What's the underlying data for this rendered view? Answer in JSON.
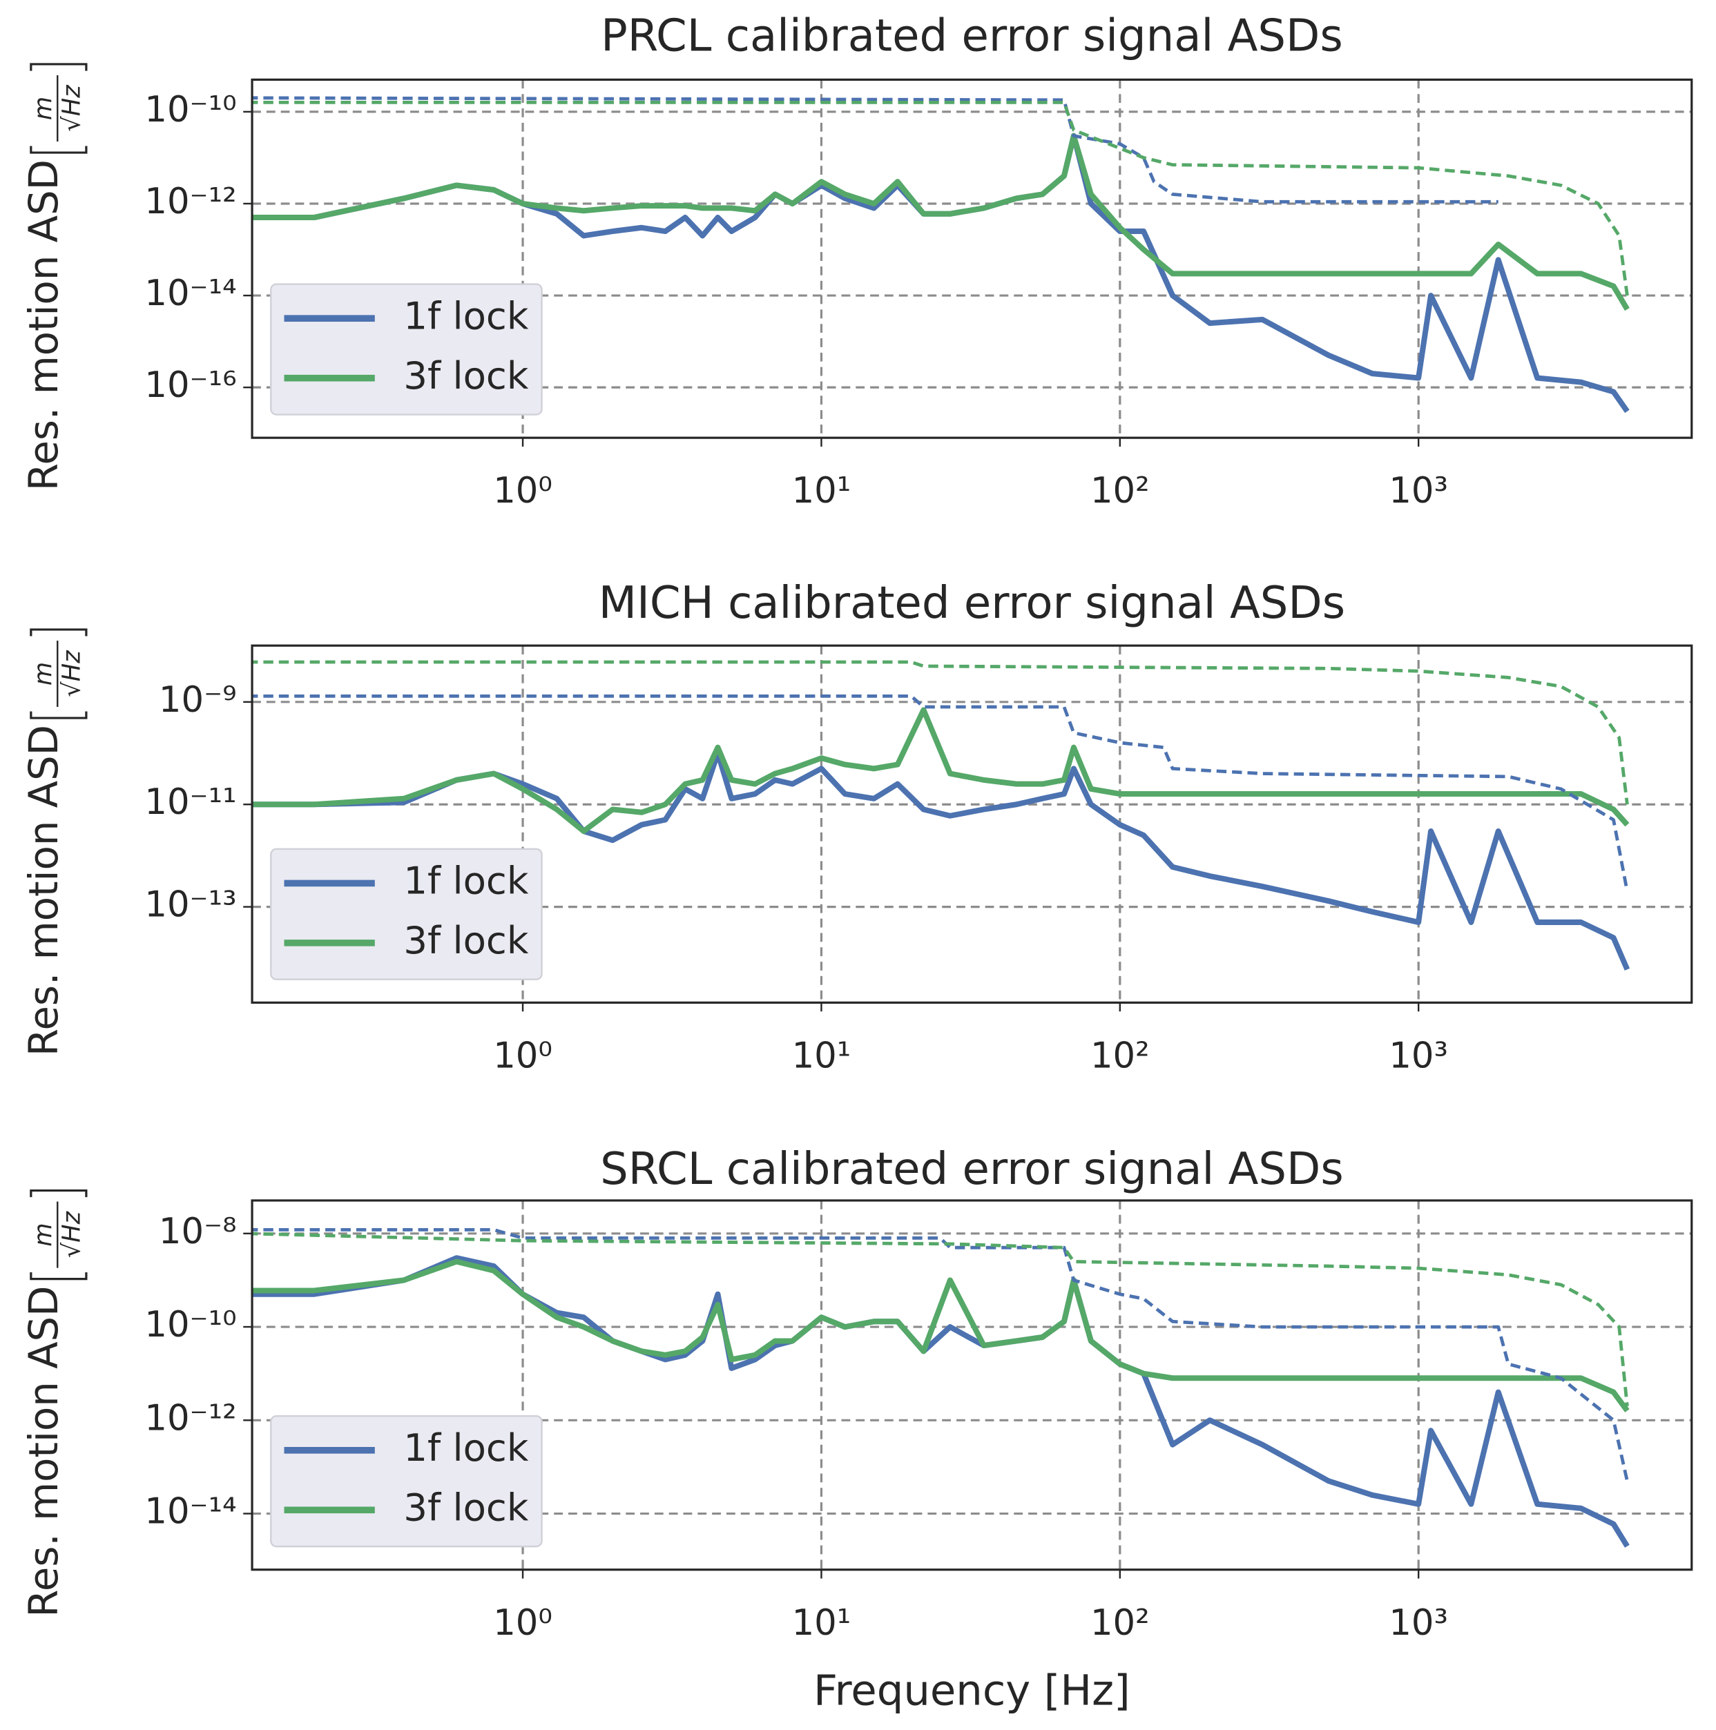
{
  "chart_data": [
    {
      "type": "line",
      "title": "PRCL calibrated error signal ASDs",
      "ylabel": "Res. motion ASD",
      "yunit": {
        "numerator": "m",
        "denominator": "√Hz"
      },
      "xlog": true,
      "ylog": true,
      "grid": true,
      "legend": "lower left",
      "xlim": [
        0.124,
        8220
      ],
      "ylim": [
        8e-18,
        5e-10
      ],
      "xticks": [
        {
          "value": 1,
          "label": "10⁰"
        },
        {
          "value": 10,
          "label": "10¹"
        },
        {
          "value": 100,
          "label": "10²"
        },
        {
          "value": 1000,
          "label": "10³"
        }
      ],
      "yticks": [
        {
          "value": 1e-16,
          "label": "10⁻¹⁶"
        },
        {
          "value": 1e-14,
          "label": "10⁻¹⁴"
        },
        {
          "value": 1e-12,
          "label": "10⁻¹²"
        },
        {
          "value": 1e-10,
          "label": "10⁻¹⁰"
        }
      ],
      "series": [
        {
          "name": "1f lock",
          "color": "#4c72b0",
          "style": "solid",
          "x": [
            0.12,
            0.2,
            0.4,
            0.6,
            0.8,
            1,
            1.3,
            1.6,
            2,
            2.5,
            3,
            3.5,
            4,
            4.5,
            5,
            6,
            7,
            8,
            10,
            12,
            15,
            18,
            22,
            27,
            35,
            45,
            55,
            65,
            70,
            80,
            100,
            120,
            150,
            200,
            300,
            500,
            700,
            1000,
            1100,
            1500,
            1850,
            2500,
            3500,
            4500,
            5000
          ],
          "values": [
            5e-13,
            5e-13,
            1.3e-12,
            2.5e-12,
            2e-12,
            1e-12,
            6e-13,
            2e-13,
            2.5e-13,
            3e-13,
            2.5e-13,
            5e-13,
            2e-13,
            5e-13,
            2.5e-13,
            5e-13,
            1.6e-12,
            1e-12,
            2.5e-12,
            1.3e-12,
            8e-13,
            2.5e-12,
            6e-13,
            6e-13,
            8e-13,
            1.3e-12,
            1.6e-12,
            4e-12,
            3e-11,
            1e-12,
            2.5e-13,
            2.5e-13,
            1e-14,
            2.5e-15,
            3e-15,
            5e-16,
            2e-16,
            1.6e-16,
            1e-14,
            1.6e-16,
            6e-14,
            1.6e-16,
            1.3e-16,
            8e-17,
            3e-17
          ]
        },
        {
          "name": "3f lock",
          "color": "#55a868",
          "style": "solid",
          "x": [
            0.12,
            0.2,
            0.4,
            0.6,
            0.8,
            1,
            1.3,
            1.6,
            2,
            2.5,
            3,
            3.5,
            4,
            4.5,
            5,
            6,
            7,
            8,
            10,
            12,
            15,
            18,
            22,
            27,
            35,
            45,
            55,
            65,
            70,
            80,
            100,
            120,
            150,
            200,
            300,
            500,
            700,
            1000,
            1100,
            1500,
            1850,
            2500,
            3500,
            4500,
            5000
          ],
          "values": [
            5e-13,
            5e-13,
            1.3e-12,
            2.5e-12,
            2e-12,
            1e-12,
            8e-13,
            7e-13,
            8e-13,
            9e-13,
            9e-13,
            9e-13,
            8e-13,
            8e-13,
            8e-13,
            7e-13,
            1.6e-12,
            1e-12,
            3e-12,
            1.6e-12,
            1e-12,
            3e-12,
            6e-13,
            6e-13,
            8e-13,
            1.3e-12,
            1.6e-12,
            4e-12,
            3e-11,
            1.6e-12,
            3e-13,
            1e-13,
            3e-14,
            3e-14,
            3e-14,
            3e-14,
            3e-14,
            3e-14,
            3e-14,
            3e-14,
            1.3e-13,
            3e-14,
            3e-14,
            1.6e-14,
            5e-15
          ]
        },
        {
          "color": "#4c72b0",
          "style": "dashed",
          "x": [
            0.12,
            65,
            70,
            100,
            120,
            130,
            150,
            300,
            1000,
            1850
          ],
          "values": [
            2e-10,
            1.8e-10,
            3e-11,
            2e-11,
            1e-11,
            3e-12,
            1.6e-12,
            1.1e-12,
            1.1e-12,
            1.1e-12
          ]
        },
        {
          "color": "#55a868",
          "style": "dashed",
          "x": [
            0.12,
            65,
            70,
            100,
            120,
            150,
            1000,
            2000,
            3000,
            4000,
            4700,
            5000
          ],
          "values": [
            1.6e-10,
            1.6e-10,
            4e-11,
            1.6e-11,
            1e-11,
            7e-12,
            6e-12,
            4e-12,
            2.5e-12,
            1e-12,
            2e-13,
            1e-14
          ]
        }
      ]
    },
    {
      "type": "line",
      "title": "MICH calibrated error signal ASDs",
      "ylabel": "Res. motion ASD",
      "yunit": {
        "numerator": "m",
        "denominator": "√Hz"
      },
      "xlog": true,
      "ylog": true,
      "grid": true,
      "legend": "lower left",
      "xlim": [
        0.124,
        8220
      ],
      "ylim": [
        1.35e-15,
        1.26e-08
      ],
      "xticks": [
        {
          "value": 1,
          "label": "10⁰"
        },
        {
          "value": 10,
          "label": "10¹"
        },
        {
          "value": 100,
          "label": "10²"
        },
        {
          "value": 1000,
          "label": "10³"
        }
      ],
      "yticks": [
        {
          "value": 1e-13,
          "label": "10⁻¹³"
        },
        {
          "value": 1e-11,
          "label": "10⁻¹¹"
        },
        {
          "value": 1e-09,
          "label": "10⁻⁹"
        }
      ],
      "series": [
        {
          "name": "1f lock",
          "color": "#4c72b0",
          "style": "solid",
          "x": [
            0.12,
            0.2,
            0.4,
            0.6,
            0.8,
            1,
            1.3,
            1.6,
            2,
            2.5,
            3,
            3.5,
            4,
            4.5,
            5,
            6,
            7,
            8,
            10,
            12,
            15,
            18,
            22,
            27,
            35,
            45,
            55,
            65,
            70,
            80,
            100,
            120,
            150,
            200,
            300,
            500,
            700,
            1000,
            1100,
            1500,
            1850,
            2500,
            3500,
            4500,
            5000
          ],
          "values": [
            1e-11,
            1e-11,
            1.1e-11,
            3e-11,
            4e-11,
            2.5e-11,
            1.3e-11,
            3e-12,
            2e-12,
            4e-12,
            5e-12,
            2e-11,
            1.3e-11,
            1e-10,
            1.3e-11,
            1.6e-11,
            3e-11,
            2.5e-11,
            5e-11,
            1.6e-11,
            1.3e-11,
            2.5e-11,
            8e-12,
            6e-12,
            8e-12,
            1e-11,
            1.3e-11,
            1.6e-11,
            5e-11,
            1e-11,
            4e-12,
            2.5e-12,
            6e-13,
            4e-13,
            2.5e-13,
            1.3e-13,
            8e-14,
            5e-14,
            3e-12,
            5e-14,
            3e-12,
            5e-14,
            5e-14,
            2.5e-14,
            6e-15
          ]
        },
        {
          "name": "3f lock",
          "color": "#55a868",
          "style": "solid",
          "x": [
            0.12,
            0.2,
            0.4,
            0.6,
            0.8,
            1,
            1.3,
            1.6,
            2,
            2.5,
            3,
            3.5,
            4,
            4.5,
            5,
            6,
            7,
            8,
            10,
            12,
            15,
            18,
            22,
            27,
            35,
            45,
            55,
            65,
            70,
            80,
            100,
            120,
            150,
            200,
            300,
            500,
            700,
            1000,
            1100,
            1500,
            1850,
            2500,
            3500,
            4500,
            5000
          ],
          "values": [
            1e-11,
            1e-11,
            1.3e-11,
            3e-11,
            4e-11,
            2e-11,
            8e-12,
            3e-12,
            8e-12,
            7e-12,
            1e-11,
            2.5e-11,
            3e-11,
            1.3e-10,
            3e-11,
            2.5e-11,
            4e-11,
            5e-11,
            8e-11,
            6e-11,
            5e-11,
            6e-11,
            7e-10,
            4e-11,
            3e-11,
            2.5e-11,
            2.5e-11,
            3e-11,
            1.3e-10,
            2e-11,
            1.6e-11,
            1.6e-11,
            1.6e-11,
            1.6e-11,
            1.6e-11,
            1.6e-11,
            1.6e-11,
            1.6e-11,
            1.6e-11,
            1.6e-11,
            1.6e-11,
            1.6e-11,
            1.6e-11,
            8e-12,
            4e-12
          ]
        },
        {
          "color": "#4c72b0",
          "style": "dashed",
          "x": [
            0.12,
            20,
            22,
            65,
            70,
            100,
            140,
            150,
            300,
            2000,
            3000,
            4500,
            5000
          ],
          "values": [
            1.3e-09,
            1.3e-09,
            8e-10,
            8e-10,
            2.5e-10,
            1.6e-10,
            1.3e-10,
            5e-11,
            4e-11,
            3.5e-11,
            2e-11,
            5e-12,
            2e-13
          ]
        },
        {
          "color": "#55a868",
          "style": "dashed",
          "x": [
            0.12,
            20,
            22,
            500,
            1000,
            2000,
            3000,
            4000,
            4700,
            5000
          ],
          "values": [
            6e-09,
            6e-09,
            5e-09,
            4.5e-09,
            4e-09,
            3e-09,
            2e-09,
            8e-10,
            2e-10,
            1e-11
          ]
        }
      ]
    },
    {
      "type": "line",
      "title": "SRCL calibrated error signal ASDs",
      "ylabel": "Res. motion ASD",
      "yunit": {
        "numerator": "m",
        "denominator": "√Hz"
      },
      "xlabel": "Frequency [Hz]",
      "xlog": true,
      "ylog": true,
      "grid": true,
      "legend": "lower left",
      "xlim": [
        0.124,
        8220
      ],
      "ylim": [
        6.3e-16,
        5.1e-08
      ],
      "xticks": [
        {
          "value": 1,
          "label": "10⁰"
        },
        {
          "value": 10,
          "label": "10¹"
        },
        {
          "value": 100,
          "label": "10²"
        },
        {
          "value": 1000,
          "label": "10³"
        }
      ],
      "yticks": [
        {
          "value": 1e-14,
          "label": "10⁻¹⁴"
        },
        {
          "value": 1e-12,
          "label": "10⁻¹²"
        },
        {
          "value": 1e-10,
          "label": "10⁻¹⁰"
        },
        {
          "value": 1e-08,
          "label": "10⁻⁸"
        }
      ],
      "series": [
        {
          "name": "1f lock",
          "color": "#4c72b0",
          "style": "solid",
          "x": [
            0.12,
            0.2,
            0.4,
            0.6,
            0.8,
            1,
            1.3,
            1.6,
            2,
            2.5,
            3,
            3.5,
            4,
            4.5,
            5,
            6,
            7,
            8,
            10,
            12,
            15,
            18,
            22,
            27,
            35,
            45,
            55,
            65,
            70,
            80,
            100,
            120,
            150,
            200,
            300,
            500,
            700,
            1000,
            1100,
            1500,
            1850,
            2500,
            3500,
            4500,
            5000
          ],
          "values": [
            5e-10,
            5e-10,
            1e-09,
            3e-09,
            2e-09,
            5e-10,
            2e-10,
            1.6e-10,
            5e-11,
            3e-11,
            2e-11,
            2.5e-11,
            5e-11,
            5e-10,
            1.3e-11,
            2e-11,
            4e-11,
            5e-11,
            1.6e-10,
            1e-10,
            1.3e-10,
            1.3e-10,
            3e-11,
            1e-10,
            4e-11,
            5e-11,
            6e-11,
            1.3e-10,
            1e-09,
            5e-11,
            1.6e-11,
            1e-11,
            3e-13,
            1e-12,
            3e-13,
            5e-14,
            2.5e-14,
            1.6e-14,
            6e-13,
            1.6e-14,
            4e-12,
            1.6e-14,
            1.3e-14,
            6e-15,
            2e-15
          ]
        },
        {
          "name": "3f lock",
          "color": "#55a868",
          "style": "solid",
          "x": [
            0.12,
            0.2,
            0.4,
            0.6,
            0.8,
            1,
            1.3,
            1.6,
            2,
            2.5,
            3,
            3.5,
            4,
            4.5,
            5,
            6,
            7,
            8,
            10,
            12,
            15,
            18,
            22,
            27,
            35,
            45,
            55,
            65,
            70,
            80,
            100,
            120,
            150,
            200,
            300,
            500,
            700,
            1000,
            1100,
            1500,
            1850,
            2500,
            3500,
            4500,
            5000
          ],
          "values": [
            6e-10,
            6e-10,
            1e-09,
            2.5e-09,
            1.6e-09,
            5e-10,
            1.6e-10,
            1e-10,
            5e-11,
            3e-11,
            2.5e-11,
            3e-11,
            6e-11,
            3e-10,
            2e-11,
            2.5e-11,
            5e-11,
            5e-11,
            1.6e-10,
            1e-10,
            1.3e-10,
            1.3e-10,
            3e-11,
            1e-09,
            4e-11,
            5e-11,
            6e-11,
            1.3e-10,
            1e-09,
            5e-11,
            1.6e-11,
            1e-11,
            8e-12,
            8e-12,
            8e-12,
            8e-12,
            8e-12,
            8e-12,
            8e-12,
            8e-12,
            8e-12,
            8e-12,
            8e-12,
            4e-12,
            1.6e-12
          ]
        },
        {
          "color": "#4c72b0",
          "style": "dashed",
          "x": [
            0.12,
            0.8,
            1,
            25,
            27,
            65,
            70,
            100,
            120,
            150,
            300,
            1850,
            2000,
            3000,
            4500,
            5000
          ],
          "values": [
            1.2e-08,
            1.2e-08,
            8e-09,
            8e-09,
            5e-09,
            5e-09,
            1e-09,
            5e-10,
            4e-10,
            1.3e-10,
            1e-10,
            1e-10,
            1.6e-11,
            8e-12,
            1e-12,
            5e-14
          ]
        },
        {
          "color": "#55a868",
          "style": "dashed",
          "x": [
            0.12,
            1,
            27,
            65,
            70,
            500,
            1000,
            2000,
            3000,
            4000,
            4700,
            5000
          ],
          "values": [
            1e-08,
            7e-09,
            6e-09,
            5e-09,
            2.5e-09,
            2e-09,
            1.8e-09,
            1.3e-09,
            8e-10,
            3e-10,
            1e-10,
            2e-12
          ]
        }
      ]
    }
  ]
}
